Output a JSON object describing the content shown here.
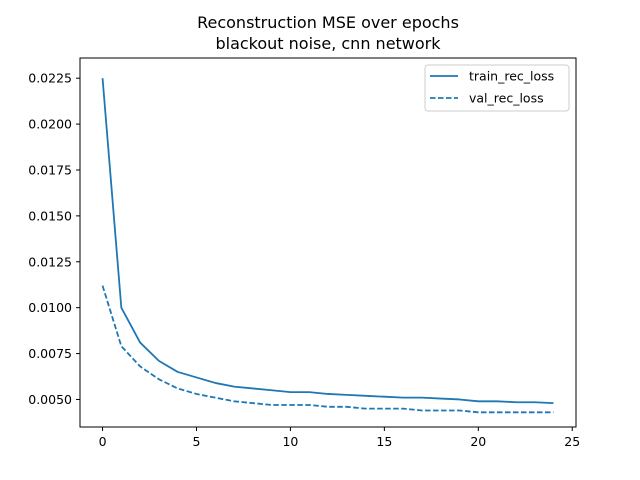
{
  "chart_data": {
    "type": "line",
    "title": [
      "Reconstruction MSE over epochs",
      "blackout noise, cnn network"
    ],
    "xlabel": "",
    "ylabel": "",
    "xlim": [
      -1.2,
      25.2
    ],
    "ylim": [
      0.0035,
      0.0236
    ],
    "x_ticks": [
      0,
      5,
      10,
      15,
      20,
      25
    ],
    "y_ticks": [
      0.005,
      0.0075,
      0.01,
      0.0125,
      0.015,
      0.0175,
      0.02,
      0.0225
    ],
    "y_tick_labels": [
      "0.0050",
      "0.0075",
      "0.0100",
      "0.0125",
      "0.0150",
      "0.0175",
      "0.0200",
      "0.0225"
    ],
    "grid": false,
    "legend_position": "top-right",
    "x": [
      0,
      1,
      2,
      3,
      4,
      5,
      6,
      7,
      8,
      9,
      10,
      11,
      12,
      13,
      14,
      15,
      16,
      17,
      18,
      19,
      20,
      21,
      22,
      23,
      24
    ],
    "series": [
      {
        "name": "train_rec_loss",
        "style": "solid",
        "color": "#1f77b4",
        "values": [
          0.0225,
          0.01,
          0.0081,
          0.0071,
          0.0065,
          0.0062,
          0.0059,
          0.0057,
          0.0056,
          0.0055,
          0.0054,
          0.0054,
          0.0053,
          0.00525,
          0.0052,
          0.00515,
          0.0051,
          0.0051,
          0.00505,
          0.005,
          0.0049,
          0.0049,
          0.00485,
          0.00485,
          0.0048
        ]
      },
      {
        "name": "val_rec_loss",
        "style": "dashed",
        "color": "#1f77b4",
        "values": [
          0.0112,
          0.0079,
          0.0068,
          0.0061,
          0.0056,
          0.0053,
          0.0051,
          0.0049,
          0.0048,
          0.0047,
          0.0047,
          0.0047,
          0.0046,
          0.0046,
          0.0045,
          0.0045,
          0.0045,
          0.0044,
          0.0044,
          0.0044,
          0.0043,
          0.0043,
          0.0043,
          0.0043,
          0.0043
        ]
      }
    ]
  }
}
